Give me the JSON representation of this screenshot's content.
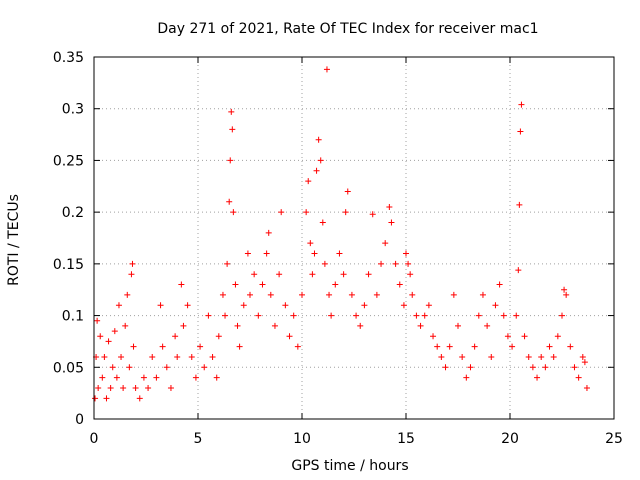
{
  "chart_data": {
    "type": "scatter",
    "title": "Day 271 of 2021, Rate Of TEC Index for receiver mac1",
    "xlabel": "GPS time / hours",
    "ylabel": "ROTI / TECUs",
    "xlim": [
      0,
      25
    ],
    "ylim": [
      0,
      0.35
    ],
    "xticks": [
      0,
      5,
      10,
      15,
      20,
      25
    ],
    "yticks": [
      0,
      0.05,
      0.1,
      0.15,
      0.2,
      0.25,
      0.3,
      0.35
    ],
    "xtick_labels": [
      "0",
      "5",
      "10",
      "15",
      "20",
      "25"
    ],
    "ytick_labels": [
      "0",
      "0.05",
      "0.1",
      "0.15",
      "0.2",
      "0.25",
      "0.3",
      "0.35"
    ],
    "grid": true,
    "marker": "+",
    "color": "#ff0000",
    "series": [
      {
        "name": "ROTI",
        "points": [
          [
            0.05,
            0.02
          ],
          [
            0.1,
            0.06
          ],
          [
            0.15,
            0.095
          ],
          [
            0.2,
            0.03
          ],
          [
            0.3,
            0.08
          ],
          [
            0.4,
            0.04
          ],
          [
            0.5,
            0.06
          ],
          [
            0.6,
            0.02
          ],
          [
            0.7,
            0.075
          ],
          [
            0.8,
            0.03
          ],
          [
            0.9,
            0.05
          ],
          [
            1.0,
            0.085
          ],
          [
            1.1,
            0.04
          ],
          [
            1.2,
            0.11
          ],
          [
            1.3,
            0.06
          ],
          [
            1.4,
            0.03
          ],
          [
            1.5,
            0.09
          ],
          [
            1.6,
            0.12
          ],
          [
            1.7,
            0.05
          ],
          [
            1.8,
            0.14
          ],
          [
            1.85,
            0.15
          ],
          [
            1.9,
            0.07
          ],
          [
            2.0,
            0.03
          ],
          [
            2.2,
            0.02
          ],
          [
            2.4,
            0.04
          ],
          [
            2.6,
            0.03
          ],
          [
            2.8,
            0.06
          ],
          [
            3.0,
            0.04
          ],
          [
            3.2,
            0.11
          ],
          [
            3.3,
            0.07
          ],
          [
            3.5,
            0.05
          ],
          [
            3.7,
            0.03
          ],
          [
            3.9,
            0.08
          ],
          [
            4.0,
            0.06
          ],
          [
            4.2,
            0.13
          ],
          [
            4.3,
            0.09
          ],
          [
            4.5,
            0.11
          ],
          [
            4.7,
            0.06
          ],
          [
            4.9,
            0.04
          ],
          [
            5.1,
            0.07
          ],
          [
            5.3,
            0.05
          ],
          [
            5.5,
            0.1
          ],
          [
            5.7,
            0.06
          ],
          [
            5.9,
            0.04
          ],
          [
            6.0,
            0.08
          ],
          [
            6.2,
            0.12
          ],
          [
            6.3,
            0.1
          ],
          [
            6.4,
            0.15
          ],
          [
            6.5,
            0.21
          ],
          [
            6.55,
            0.25
          ],
          [
            6.6,
            0.297
          ],
          [
            6.65,
            0.28
          ],
          [
            6.7,
            0.2
          ],
          [
            6.8,
            0.13
          ],
          [
            6.9,
            0.09
          ],
          [
            7.0,
            0.07
          ],
          [
            7.2,
            0.11
          ],
          [
            7.4,
            0.16
          ],
          [
            7.5,
            0.12
          ],
          [
            7.7,
            0.14
          ],
          [
            7.9,
            0.1
          ],
          [
            8.1,
            0.13
          ],
          [
            8.3,
            0.16
          ],
          [
            8.4,
            0.18
          ],
          [
            8.5,
            0.12
          ],
          [
            8.7,
            0.09
          ],
          [
            8.9,
            0.14
          ],
          [
            9.0,
            0.2
          ],
          [
            9.2,
            0.11
          ],
          [
            9.4,
            0.08
          ],
          [
            9.6,
            0.1
          ],
          [
            9.8,
            0.07
          ],
          [
            10.0,
            0.12
          ],
          [
            10.2,
            0.2
          ],
          [
            10.3,
            0.23
          ],
          [
            10.4,
            0.17
          ],
          [
            10.5,
            0.14
          ],
          [
            10.6,
            0.16
          ],
          [
            10.7,
            0.24
          ],
          [
            10.8,
            0.27
          ],
          [
            10.9,
            0.25
          ],
          [
            11.0,
            0.19
          ],
          [
            11.1,
            0.15
          ],
          [
            11.2,
            0.338
          ],
          [
            11.3,
            0.12
          ],
          [
            11.4,
            0.1
          ],
          [
            11.6,
            0.13
          ],
          [
            11.8,
            0.16
          ],
          [
            12.0,
            0.14
          ],
          [
            12.1,
            0.2
          ],
          [
            12.2,
            0.22
          ],
          [
            12.4,
            0.12
          ],
          [
            12.6,
            0.1
          ],
          [
            12.8,
            0.09
          ],
          [
            13.0,
            0.11
          ],
          [
            13.2,
            0.14
          ],
          [
            13.4,
            0.198
          ],
          [
            13.6,
            0.12
          ],
          [
            13.8,
            0.15
          ],
          [
            14.0,
            0.17
          ],
          [
            14.2,
            0.205
          ],
          [
            14.3,
            0.19
          ],
          [
            14.5,
            0.15
          ],
          [
            14.7,
            0.13
          ],
          [
            14.9,
            0.11
          ],
          [
            15.0,
            0.16
          ],
          [
            15.1,
            0.15
          ],
          [
            15.2,
            0.14
          ],
          [
            15.3,
            0.12
          ],
          [
            15.5,
            0.1
          ],
          [
            15.7,
            0.09
          ],
          [
            15.9,
            0.1
          ],
          [
            16.1,
            0.11
          ],
          [
            16.3,
            0.08
          ],
          [
            16.5,
            0.07
          ],
          [
            16.7,
            0.06
          ],
          [
            16.9,
            0.05
          ],
          [
            17.1,
            0.07
          ],
          [
            17.3,
            0.12
          ],
          [
            17.5,
            0.09
          ],
          [
            17.7,
            0.06
          ],
          [
            17.9,
            0.04
          ],
          [
            18.1,
            0.05
          ],
          [
            18.3,
            0.07
          ],
          [
            18.5,
            0.1
          ],
          [
            18.7,
            0.12
          ],
          [
            18.9,
            0.09
          ],
          [
            19.1,
            0.06
          ],
          [
            19.3,
            0.11
          ],
          [
            19.5,
            0.13
          ],
          [
            19.7,
            0.1
          ],
          [
            19.9,
            0.08
          ],
          [
            20.1,
            0.07
          ],
          [
            20.3,
            0.1
          ],
          [
            20.4,
            0.144
          ],
          [
            20.45,
            0.207
          ],
          [
            20.5,
            0.278
          ],
          [
            20.55,
            0.304
          ],
          [
            20.7,
            0.08
          ],
          [
            20.9,
            0.06
          ],
          [
            21.1,
            0.05
          ],
          [
            21.3,
            0.04
          ],
          [
            21.5,
            0.06
          ],
          [
            21.7,
            0.05
          ],
          [
            21.9,
            0.07
          ],
          [
            22.1,
            0.06
          ],
          [
            22.3,
            0.08
          ],
          [
            22.5,
            0.1
          ],
          [
            22.6,
            0.125
          ],
          [
            22.7,
            0.12
          ],
          [
            22.9,
            0.07
          ],
          [
            23.1,
            0.05
          ],
          [
            23.3,
            0.04
          ],
          [
            23.5,
            0.06
          ],
          [
            23.6,
            0.055
          ],
          [
            23.7,
            0.03
          ]
        ]
      }
    ]
  }
}
